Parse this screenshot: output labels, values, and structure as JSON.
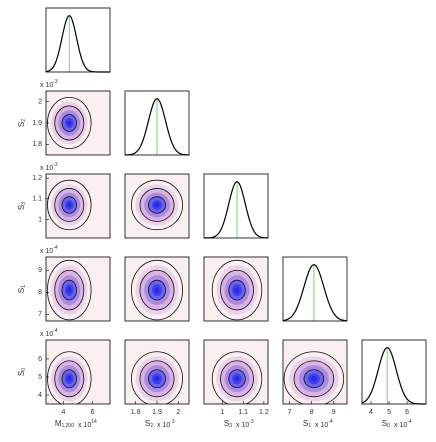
{
  "chart_data": {
    "type": "corner",
    "parameters": [
      {
        "symbol": "M",
        "subscript": "1,200",
        "scale": "x 10",
        "exponent": "14",
        "lim": [
          2.8,
          7.2
        ],
        "ticks": [
          4,
          6
        ],
        "mode": 4.4,
        "std": 0.5
      },
      {
        "symbol": "S",
        "subscript": "2",
        "scale": "x 10",
        "exponent": "-3",
        "lim": [
          1.75,
          2.05
        ],
        "ticks": [
          1.8,
          1.9,
          2
        ],
        "mode": 1.9,
        "std": 0.04
      },
      {
        "symbol": "S",
        "subscript": "3",
        "scale": "x 10",
        "exponent": "-3",
        "lim": [
          0.91,
          1.22
        ],
        "ticks": [
          1,
          1.1,
          1.2
        ],
        "mode": 1.07,
        "std": 0.04
      },
      {
        "symbol": "S",
        "subscript": "1",
        "scale": "x 10",
        "exponent": "-4",
        "lim": [
          6.7,
          9.6
        ],
        "ticks": [
          7,
          8,
          9
        ],
        "mode": 8.1,
        "std": 0.45
      },
      {
        "symbol": "S",
        "subscript": "0",
        "scale": "x 10",
        "exponent": "-4",
        "lim": [
          3.5,
          7.05
        ],
        "ticks": [
          4,
          5,
          6
        ],
        "mode": 4.9,
        "std": 0.5
      }
    ],
    "marginal_color": "#000000",
    "mode_line_color": "#66dd66"
  }
}
